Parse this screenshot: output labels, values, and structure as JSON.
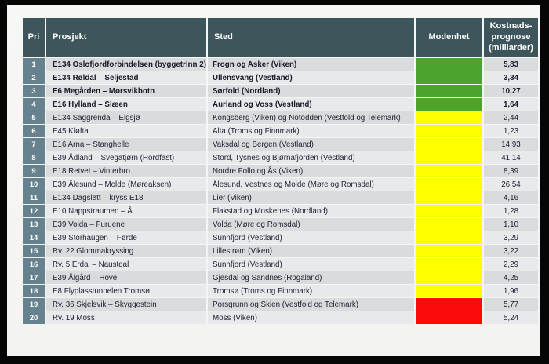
{
  "table": {
    "headers": {
      "pri": "Pri",
      "prosjekt": "Prosjekt",
      "sted": "Sted",
      "modenhet": "Modenhet",
      "kostnad": "Kostnads-prognose (milliarder)"
    },
    "maturity_colors": {
      "green": "#4ca32e",
      "yellow": "#ffff00",
      "red": "#fb0b0b"
    },
    "rows": [
      {
        "pri": "1",
        "prosjekt": "E134 Oslofjordforbindelsen (byggetrinn 2)",
        "sted": "Frogn og Asker (Viken)",
        "modenhet": "green",
        "kostnad": "5,83",
        "bold": true
      },
      {
        "pri": "2",
        "prosjekt": "E134 Røldal – Seljestad",
        "sted": "Ullensvang (Vestland)",
        "modenhet": "green",
        "kostnad": "3,34",
        "bold": true
      },
      {
        "pri": "3",
        "prosjekt": "E6 Megården – Mørsvikbotn",
        "sted": "Sørfold (Nordland)",
        "modenhet": "green",
        "kostnad": "10,27",
        "bold": true
      },
      {
        "pri": "4",
        "prosjekt": "E16 Hylland – Slæen",
        "sted": "Aurland og Voss (Vestland)",
        "modenhet": "green",
        "kostnad": "1,64",
        "bold": true
      },
      {
        "pri": "5",
        "prosjekt": "E134 Saggrenda – Elgsjø",
        "sted": "Kongsberg (Viken) og Notodden (Vestfold og Telemark)",
        "modenhet": "yellow",
        "kostnad": "2,44",
        "bold": false
      },
      {
        "pri": "6",
        "prosjekt": "E45 Kløfta",
        "sted": "Alta (Troms og Finnmark)",
        "modenhet": "yellow",
        "kostnad": "1,23",
        "bold": false
      },
      {
        "pri": "7",
        "prosjekt": "E16 Arna – Stanghelle",
        "sted": "Vaksdal og Bergen (Vestland)",
        "modenhet": "yellow",
        "kostnad": "14,93",
        "bold": false
      },
      {
        "pri": "8",
        "prosjekt": "E39 Ådland – Svegatjørn (Hordfast)",
        "sted": "Stord, Tysnes og Bjørnafjorden (Vestland)",
        "modenhet": "yellow",
        "kostnad": "41,14",
        "bold": false
      },
      {
        "pri": "9",
        "prosjekt": "E18 Retvet – Vinterbro",
        "sted": "Nordre Follo og Ås (Viken)",
        "modenhet": "yellow",
        "kostnad": "8,39",
        "bold": false
      },
      {
        "pri": "10",
        "prosjekt": "E39 Ålesund – Molde (Møreaksen)",
        "sted": "Ålesund, Vestnes og Molde (Møre og Romsdal)",
        "modenhet": "yellow",
        "kostnad": "26,54",
        "bold": false
      },
      {
        "pri": "11",
        "prosjekt": "E134 Dagslett – kryss E18",
        "sted": "Lier (Viken)",
        "modenhet": "yellow",
        "kostnad": "4,16",
        "bold": false
      },
      {
        "pri": "12",
        "prosjekt": "E10 Nappstraumen – Å",
        "sted": "Flakstad og Moskenes (Nordland)",
        "modenhet": "yellow",
        "kostnad": "1,28",
        "bold": false
      },
      {
        "pri": "13",
        "prosjekt": "E39 Volda – Furuene",
        "sted": "Volda (Møre og Romsdal)",
        "modenhet": "yellow",
        "kostnad": "1,10",
        "bold": false
      },
      {
        "pri": "14",
        "prosjekt": "E39 Storhaugen – Førde",
        "sted": "Sunnfjord (Vestland)",
        "modenhet": "yellow",
        "kostnad": "3,29",
        "bold": false
      },
      {
        "pri": "15",
        "prosjekt": "Rv. 22 Glommakryssing",
        "sted": "Lillestrøm (Viken)",
        "modenhet": "yellow",
        "kostnad": "3,22",
        "bold": false
      },
      {
        "pri": "16",
        "prosjekt": "Rv. 5 Erdal – Naustdal",
        "sted": "Sunnfjord (Vestland)",
        "modenhet": "yellow",
        "kostnad": "2,29",
        "bold": false
      },
      {
        "pri": "17",
        "prosjekt": "E39 Ålgård – Hove",
        "sted": "Gjesdal og Sandnes (Rogaland)",
        "modenhet": "yellow",
        "kostnad": "4,25",
        "bold": false
      },
      {
        "pri": "18",
        "prosjekt": "E8 Flyplasstunnelen Tromsø",
        "sted": "Tromsø (Troms og Finnmark)",
        "modenhet": "yellow",
        "kostnad": "1,96",
        "bold": false
      },
      {
        "pri": "19",
        "prosjekt": "Rv. 36 Skjelsvik – Skyggestein",
        "sted": "Porsgrunn og Skien (Vestfold og Telemark)",
        "modenhet": "red",
        "kostnad": "5,77",
        "bold": false
      },
      {
        "pri": "20",
        "prosjekt": "Rv. 19 Moss",
        "sted": "Moss (Viken)",
        "modenhet": "red",
        "kostnad": "5,24",
        "bold": false
      }
    ]
  }
}
